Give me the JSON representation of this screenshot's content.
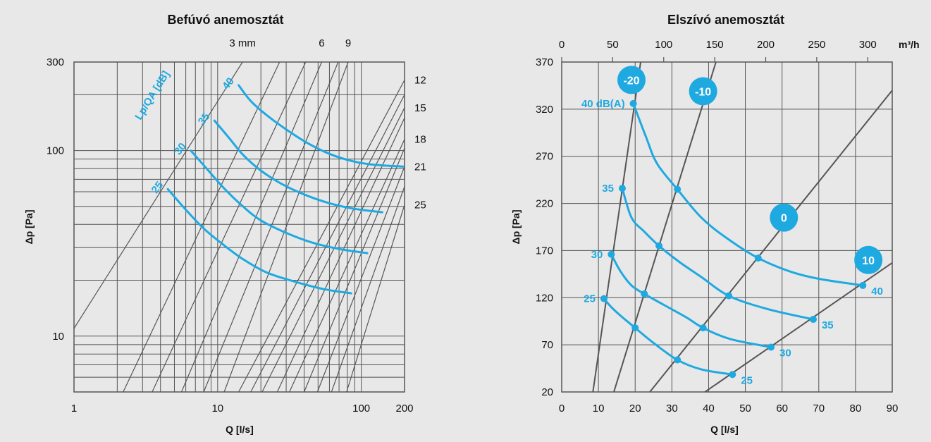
{
  "colors": {
    "background": "#e8e8e8",
    "curve": "#1fa9e1",
    "grid": "#555555",
    "text": "#111111",
    "badge_text": "#ffffff"
  },
  "chart_data": [
    {
      "type": "line",
      "title": "Befúvó anemosztát",
      "xlabel": "Q [l/s]",
      "ylabel": "Δp [Pa]",
      "xscale": "log",
      "yscale": "log",
      "xlim": [
        1,
        200
      ],
      "ylim": [
        5,
        300
      ],
      "x_ticks": [
        {
          "v": 1,
          "label": "1"
        },
        {
          "v": 10,
          "label": "10"
        },
        {
          "v": 100,
          "label": "100"
        },
        {
          "v": 200,
          "label": "200"
        }
      ],
      "y_ticks": [
        {
          "v": 10,
          "label": "10"
        },
        {
          "v": 100,
          "label": "100"
        },
        {
          "v": 300,
          "label": "300"
        }
      ],
      "x_grid": [
        2,
        3,
        4,
        5,
        6,
        7,
        8,
        9,
        10,
        20,
        30,
        40,
        50,
        60,
        70,
        80,
        90,
        100,
        200
      ],
      "y_grid": [
        5,
        6,
        7,
        8,
        9,
        10,
        20,
        30,
        40,
        50,
        60,
        70,
        80,
        90,
        100,
        200,
        300
      ],
      "curve_label_title": "Lp/QA [dB]",
      "opening_lines": [
        {
          "label": "3 mm",
          "points": [
            [
              1,
              11
            ],
            [
              14.9,
              300
            ]
          ]
        },
        {
          "label": "",
          "points": [
            [
              2.2,
              5
            ],
            [
              27,
              300
            ]
          ]
        },
        {
          "label": "",
          "points": [
            [
              3.5,
              5
            ],
            [
              41,
              300
            ]
          ]
        },
        {
          "label": "6",
          "points": [
            [
              5.6,
              5
            ],
            [
              53,
              300
            ]
          ]
        },
        {
          "label": "",
          "points": [
            [
              8,
              5
            ],
            [
              69,
              300
            ]
          ]
        },
        {
          "label": "9",
          "points": [
            [
              11.1,
              5
            ],
            [
              81,
              300
            ]
          ]
        },
        {
          "label": "12",
          "points": [
            [
              14,
              5
            ],
            [
              200,
              240
            ]
          ]
        },
        {
          "label": "",
          "points": [
            [
              17,
              5
            ],
            [
              200,
              200
            ]
          ]
        },
        {
          "label": "15",
          "points": [
            [
              20.4,
              5
            ],
            [
              200,
              170
            ]
          ]
        },
        {
          "label": "",
          "points": [
            [
              26,
              5
            ],
            [
              200,
              150
            ]
          ]
        },
        {
          "label": "18",
          "points": [
            [
              31.6,
              5
            ],
            [
              200,
              115
            ]
          ]
        },
        {
          "label": "",
          "points": [
            [
              40,
              5
            ],
            [
              200,
              103
            ]
          ]
        },
        {
          "label": "21",
          "points": [
            [
              49.5,
              5
            ],
            [
              200,
              82
            ]
          ]
        },
        {
          "label": "",
          "points": [
            [
              62,
              5
            ],
            [
              200,
              64
            ]
          ]
        },
        {
          "label": "25",
          "points": [
            [
              79,
              5
            ],
            [
              200,
              51
            ]
          ]
        }
      ],
      "series": [
        {
          "name": "25",
          "points": [
            [
              4.5,
              62
            ],
            [
              6,
              48
            ],
            [
              8,
              38
            ],
            [
              11,
              31
            ],
            [
              15,
              26
            ],
            [
              22,
              22
            ],
            [
              35,
              19.6
            ],
            [
              55,
              17.9
            ],
            [
              85,
              17
            ]
          ]
        },
        {
          "name": "30",
          "points": [
            [
              6.5,
              100
            ],
            [
              8.5,
              79
            ],
            [
              11,
              63
            ],
            [
              15,
              50
            ],
            [
              20,
              42
            ],
            [
              30,
              36
            ],
            [
              45,
              32
            ],
            [
              70,
              29.5
            ],
            [
              110,
              28
            ]
          ]
        },
        {
          "name": "35",
          "points": [
            [
              9.5,
              145
            ],
            [
              12,
              117
            ],
            [
              15,
              95
            ],
            [
              20,
              78
            ],
            [
              28,
              66
            ],
            [
              40,
              58
            ],
            [
              60,
              52
            ],
            [
              90,
              48.5
            ],
            [
              140,
              46.5
            ]
          ]
        },
        {
          "name": "40",
          "points": [
            [
              14,
              225
            ],
            [
              17,
              185
            ],
            [
              22,
              155
            ],
            [
              30,
              130
            ],
            [
              42,
              110
            ],
            [
              60,
              96
            ],
            [
              85,
              88
            ],
            [
              120,
              84
            ],
            [
              195,
              82
            ]
          ]
        }
      ]
    },
    {
      "type": "line",
      "title": "Elszívó anemosztát",
      "xlabel": "Q [l/s]",
      "ylabel": "Δp [Pa]",
      "xlim": [
        0,
        90
      ],
      "ylim": [
        20,
        370
      ],
      "x_ticks": [
        0,
        10,
        20,
        30,
        40,
        50,
        60,
        70,
        80,
        90
      ],
      "y_ticks": [
        20,
        70,
        120,
        170,
        220,
        270,
        320,
        370
      ],
      "x2label": "m³/h",
      "x2_ticks": [
        0,
        50,
        100,
        150,
        200,
        250,
        300
      ],
      "valve_lines": [
        {
          "label": "-20",
          "points": [
            [
              8.5,
              20
            ],
            [
              21.5,
              370
            ]
          ]
        },
        {
          "label": "-10",
          "points": [
            [
              14.2,
              20
            ],
            [
              42,
              370
            ]
          ]
        },
        {
          "label": "0",
          "points": [
            [
              24,
              20
            ],
            [
              90,
              340
            ]
          ]
        },
        {
          "label": "10",
          "points": [
            [
              39,
              20
            ],
            [
              90,
              157
            ]
          ]
        }
      ],
      "series": [
        {
          "name": "25",
          "points": [
            [
              11.5,
              119
            ],
            [
              13.5,
              110
            ],
            [
              16,
              101
            ],
            [
              20,
              88
            ],
            [
              25,
              72
            ],
            [
              31.5,
              54
            ],
            [
              38,
              44
            ],
            [
              46.5,
              38.5
            ]
          ]
        },
        {
          "name": "30",
          "points": [
            [
              13.5,
              166
            ],
            [
              16,
              148
            ],
            [
              19,
              133
            ],
            [
              22.5,
              124
            ],
            [
              28,
              112
            ],
            [
              34,
              99
            ],
            [
              38.5,
              88
            ],
            [
              46,
              76
            ],
            [
              57,
              67.5
            ]
          ]
        },
        {
          "name": "35",
          "points": [
            [
              16.5,
              236
            ],
            [
              19,
              205
            ],
            [
              22.5,
              190
            ],
            [
              26.5,
              175
            ],
            [
              32,
              158
            ],
            [
              38,
              142
            ],
            [
              45.5,
              122
            ],
            [
              56,
              108
            ],
            [
              68.5,
              97
            ]
          ]
        },
        {
          "name": "40 dB(A)",
          "points": [
            [
              19.5,
              326
            ],
            [
              23,
              290
            ],
            [
              26,
              262
            ],
            [
              31.5,
              235
            ],
            [
              38,
              205
            ],
            [
              45,
              183
            ],
            [
              53.5,
              162
            ],
            [
              62,
              148
            ],
            [
              70,
              140
            ],
            [
              82,
              133
            ]
          ]
        }
      ],
      "markers": [
        [
          11.5,
          119
        ],
        [
          20,
          88
        ],
        [
          31.5,
          54
        ],
        [
          46.5,
          38.5
        ],
        [
          13.5,
          166
        ],
        [
          22.5,
          124
        ],
        [
          38.5,
          88
        ],
        [
          57,
          67.5
        ],
        [
          16.5,
          236
        ],
        [
          26.5,
          175
        ],
        [
          45.5,
          122
        ],
        [
          68.5,
          97
        ],
        [
          19.5,
          326
        ],
        [
          31.5,
          235
        ],
        [
          53.5,
          162
        ],
        [
          82,
          133
        ]
      ],
      "point_labels": [
        {
          "text": "25",
          "at": "left",
          "x": 11.5,
          "y": 119
        },
        {
          "text": "30",
          "at": "left",
          "x": 13.5,
          "y": 166
        },
        {
          "text": "35",
          "at": "left",
          "x": 16.5,
          "y": 236
        },
        {
          "text": "40 dB(A)",
          "at": "left",
          "x": 19.5,
          "y": 326
        },
        {
          "text": "25",
          "at": "right",
          "x": 46.5,
          "y": 38.5
        },
        {
          "text": "30",
          "at": "right",
          "x": 57,
          "y": 67.5
        },
        {
          "text": "35",
          "at": "right",
          "x": 68.5,
          "y": 97
        },
        {
          "text": "40",
          "at": "right",
          "x": 82,
          "y": 133
        }
      ],
      "badges": [
        {
          "text": "-20",
          "x": 19,
          "y": 351
        },
        {
          "text": "-10",
          "x": 38.5,
          "y": 339
        },
        {
          "text": "0",
          "x": 60.5,
          "y": 205
        },
        {
          "text": "10",
          "x": 83.5,
          "y": 160
        }
      ]
    }
  ]
}
